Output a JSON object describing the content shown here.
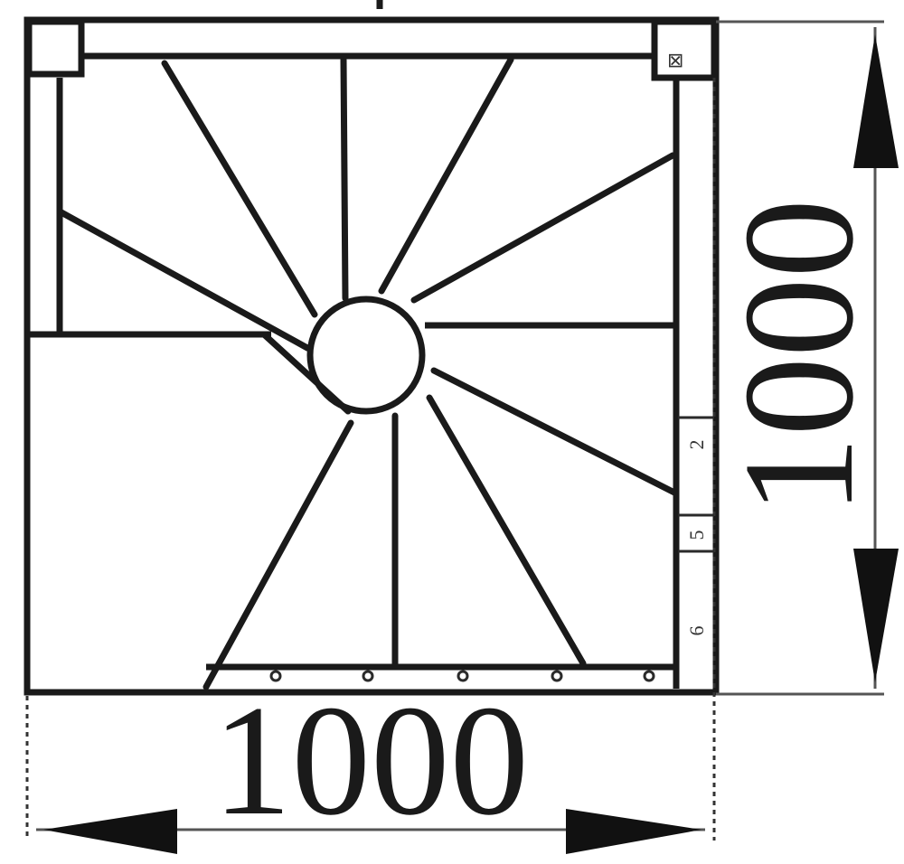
{
  "dimensions": {
    "width_label": "1000",
    "height_label": "1000"
  },
  "side_marks": [
    "2",
    "5",
    "6"
  ],
  "corner_mark": "⊠"
}
